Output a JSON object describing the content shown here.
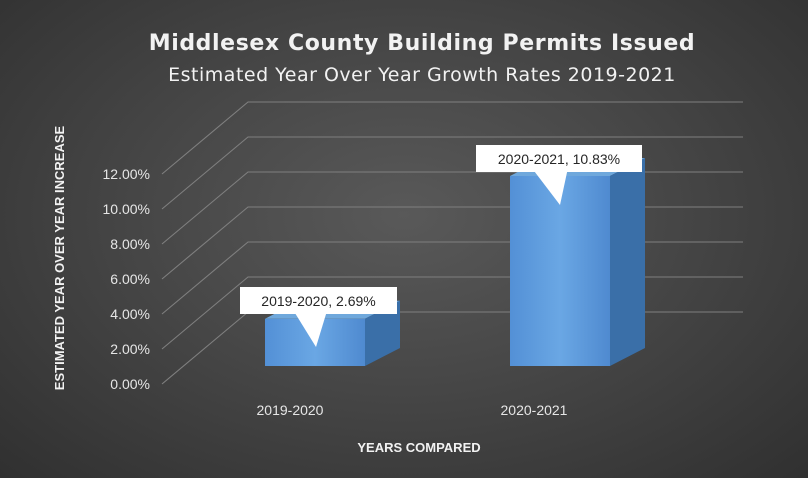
{
  "chart_data": {
    "type": "bar",
    "title": "Middlesex County Building Permits Issued",
    "subtitle": "Estimated Year Over Year Growth Rates 2019-2021",
    "xlabel": "YEARS COMPARED",
    "ylabel": "ESTIMATED YEAR OVER YEAR INCREASE",
    "categories": [
      "2019-2020",
      "2020-2021"
    ],
    "values": [
      2.69,
      10.83
    ],
    "data_labels": [
      "2019-2020, 2.69%",
      "2020-2021, 10.83%"
    ],
    "yticks": [
      "0.00%",
      "2.00%",
      "4.00%",
      "6.00%",
      "8.00%",
      "10.00%",
      "12.00%"
    ],
    "ylim": [
      0,
      12
    ],
    "grid": true,
    "legend": "none",
    "colors": {
      "bar_front": "#5b9bd5",
      "bar_top": "#6fa8dc",
      "bar_side": "#3a6fa8",
      "grid": "#7f7f7f",
      "text": "#f2f2f2"
    }
  }
}
